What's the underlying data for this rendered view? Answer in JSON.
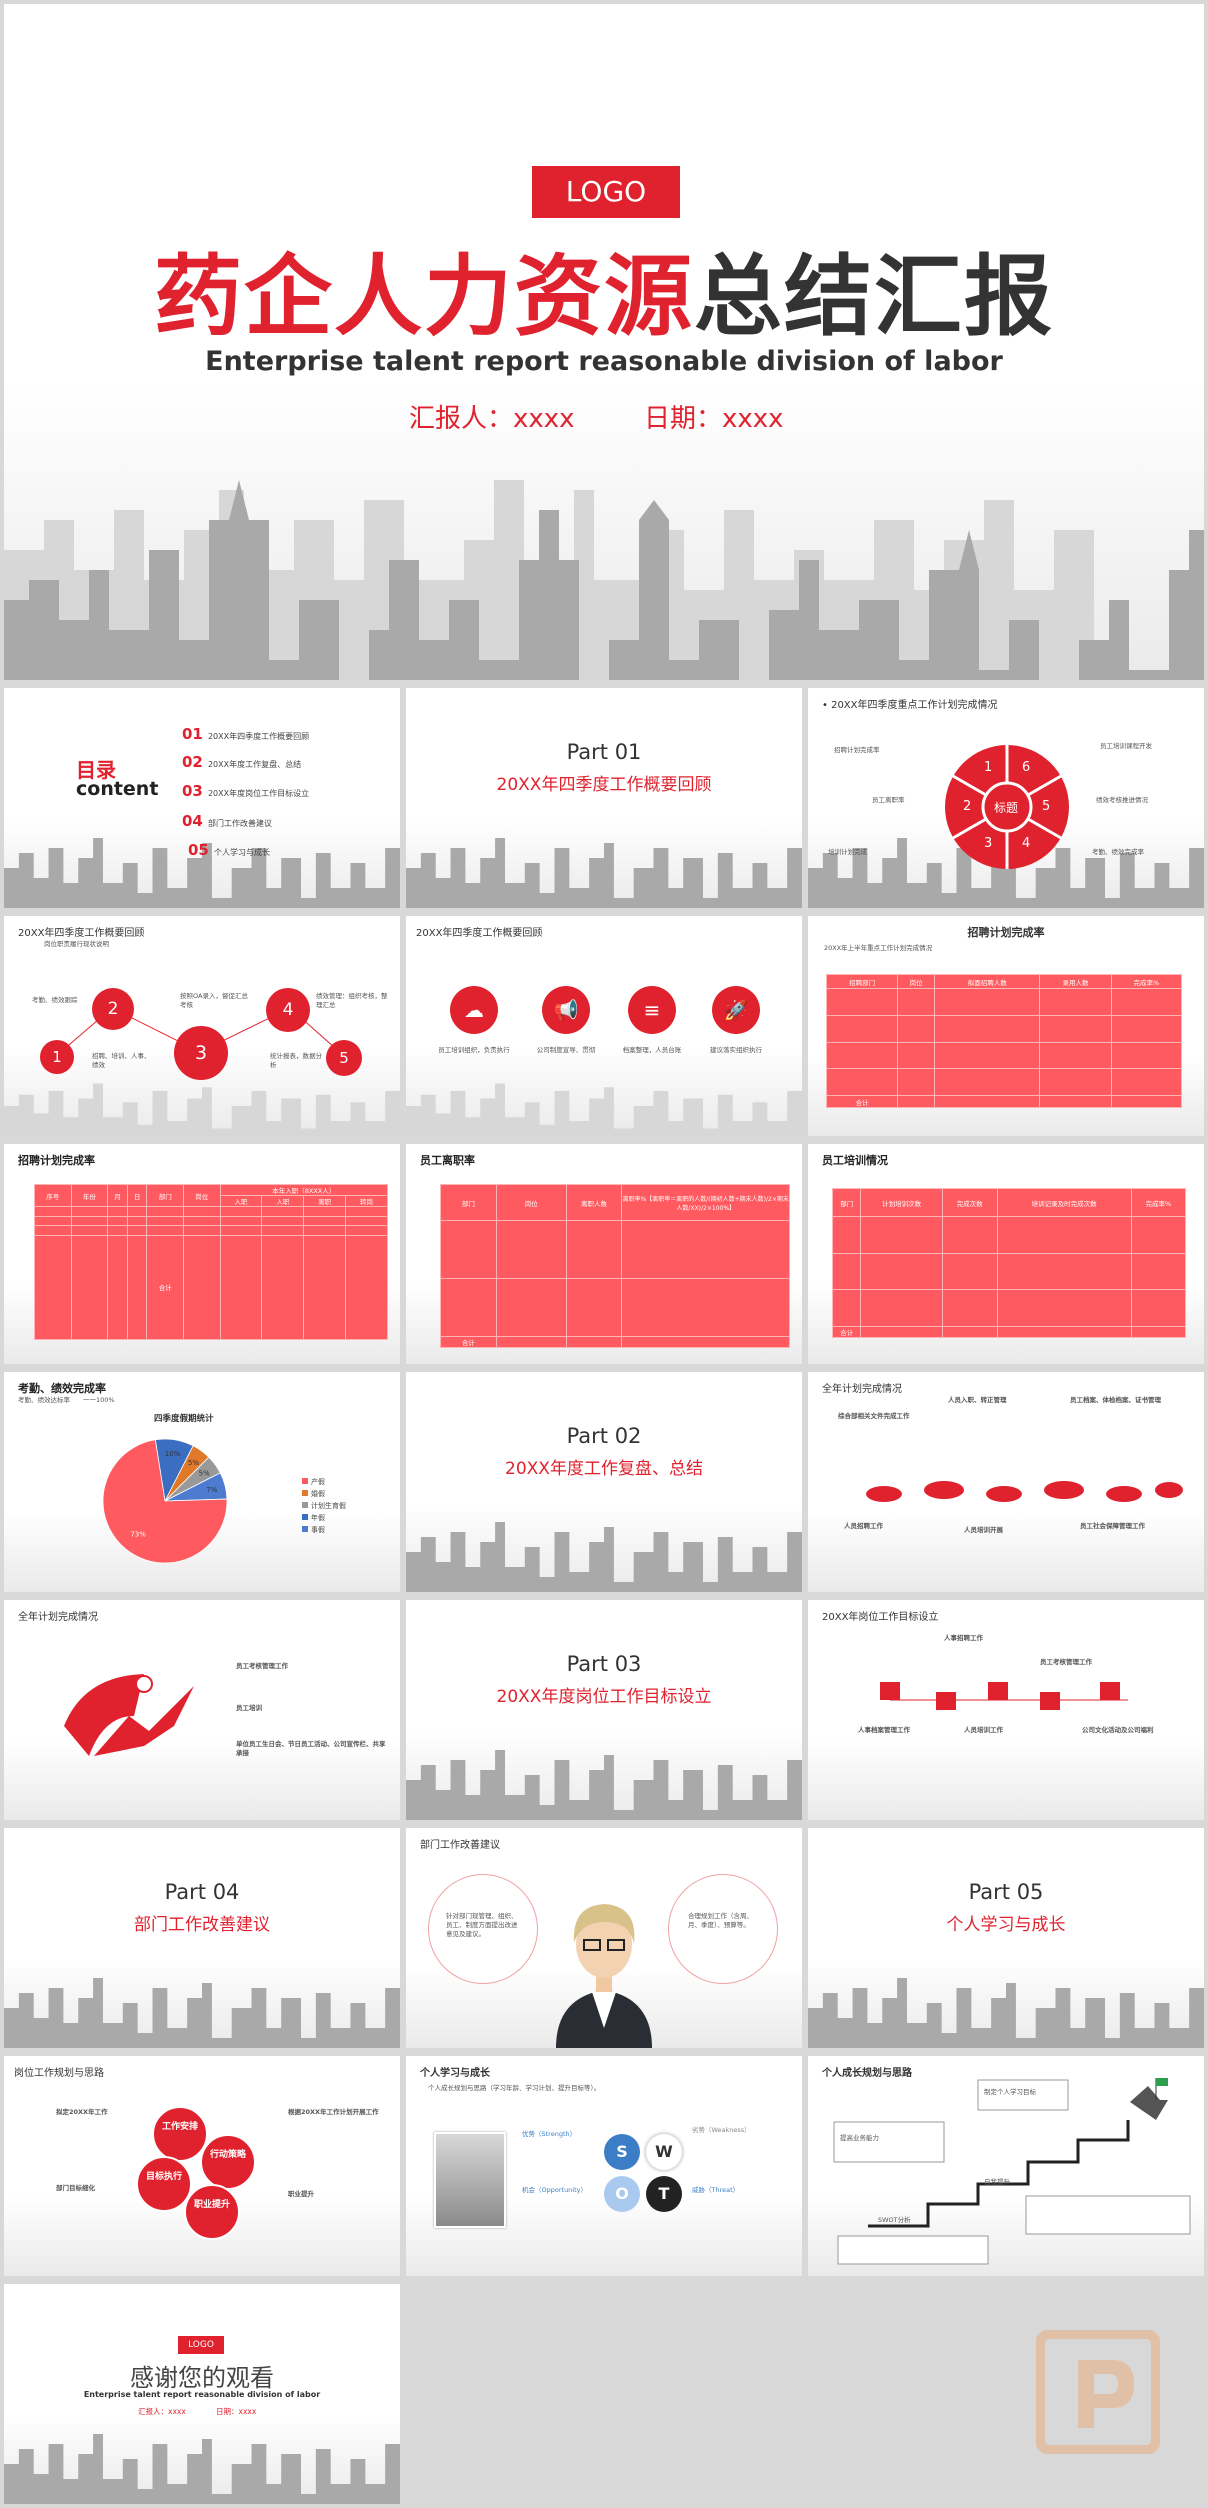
{
  "cover": {
    "logo": "LOGO",
    "title_red": "药企人力资源",
    "title_dark": "总结汇报",
    "subtitle": "Enterprise talent report reasonable division of labor",
    "reporter": "汇报人：xxxx",
    "date": "日期：xxxx"
  },
  "toc": {
    "label_cn": "目录",
    "label_en": "content",
    "items": [
      {
        "num": "01",
        "text": "20XX年四季度工作概要回顾"
      },
      {
        "num": "02",
        "text": "20XX年度工作复盘、总结"
      },
      {
        "num": "03",
        "text": "20XX年度岗位工作目标设立"
      },
      {
        "num": "04",
        "text": "部门工作改善建议"
      },
      {
        "num": "05",
        "text": "个人学习与成长"
      }
    ]
  },
  "part01": {
    "part": "Part 01",
    "title": "20XX年四季度工作概要回顾"
  },
  "part02": {
    "part": "Part 02",
    "title": "20XX年度工作复盘、总结"
  },
  "part03": {
    "part": "Part 03",
    "title": "20XX年度岗位工作目标设立"
  },
  "part04": {
    "part": "Part 04",
    "title": "部门工作改善建议"
  },
  "part05": {
    "part": "Part 05",
    "title": "个人学习与成长"
  },
  "flower": {
    "title": "• 20XX年四季度重点工作计划完成情况",
    "center": "标题",
    "petals": [
      "1",
      "2",
      "3",
      "4",
      "5",
      "6"
    ],
    "labels": [
      "招聘计划完成率",
      "员工离职率",
      "培训计划完成",
      "员工培训课程开发",
      "绩效考核推进情况",
      "考勤、绩效完成率"
    ]
  },
  "steps": {
    "title": "20XX年四季度工作概要回顾",
    "sub": "岗位职责履行现状说明",
    "nums": [
      "1",
      "2",
      "3",
      "4",
      "5"
    ],
    "notes": [
      "考勤、绩效跟踪",
      "招聘、培训、人事、绩效",
      "按照OA录入，督促汇总考核",
      "绩效管理：组织考核，整理汇总",
      "统计报表，数据分析"
    ]
  },
  "icons": {
    "title": "20XX年四季度工作概要回顾",
    "items": [
      "员工培训组织，负责执行",
      "公司制度宣导、贯彻",
      "档案整理，人员台账",
      "建议落实组织执行"
    ]
  },
  "recruit1": {
    "title": "招聘计划完成率",
    "sub": "20XX年上半年重点工作计划完成情况",
    "headers": [
      "招聘部门",
      "岗位",
      "拟面招聘人数",
      "录用人数",
      "完成率%"
    ],
    "footer": "合计"
  },
  "recruit2": {
    "title": "招聘计划完成率",
    "headers": [
      "序号",
      "年份",
      "月",
      "日",
      "部门",
      "岗位",
      "本年入职（8XXX人）",
      "入职",
      "入职",
      "离职",
      "转岗"
    ],
    "footer": "合计"
  },
  "turnover": {
    "title": "员工离职率",
    "headers": [
      "部门",
      "岗位",
      "离职人数",
      "离职率%【离职率＝离职的人数/(期初人数+期末人数)/2×期末人数/XX)/2×100%】"
    ],
    "footer": "合计"
  },
  "training": {
    "title": "员工培训情况",
    "headers": [
      "部门",
      "计划培训次数",
      "完成次数",
      "培训记录及时完成次数",
      "完成率%"
    ],
    "footer": "合计"
  },
  "pie": {
    "title": "考勤、绩效完成率",
    "sub": "考勤、绩效达标率　　一一100%",
    "chart_title": "四季度假期统计"
  },
  "chart_data": {
    "type": "pie",
    "title": "四季度假期统计",
    "categories": [
      "产假",
      "婚假",
      "计划生育假",
      "年假",
      "事假"
    ],
    "values": [
      73,
      5,
      5,
      10,
      7
    ],
    "colors": [
      "#ff5a5f",
      "#e07a2a",
      "#999999",
      "#3b6dc0",
      "#4d7bd0"
    ],
    "legend": "right"
  },
  "plan1": {
    "title": "全年计划完成情况",
    "blocks": [
      "综合部相关文件完成工作",
      "人员入职、转正管理",
      "员工档案、体检档案、证书管理",
      "人员招聘工作",
      "人员培训开展",
      "员工社会保障管理工作"
    ]
  },
  "plan2": {
    "title": "全年计划完成情况",
    "items": [
      "员工考核管理工作",
      "员工培训",
      "单位员工生日会、节日员工活动、公司宣传栏、共享承接"
    ]
  },
  "goals": {
    "title": "20XX年岗位工作目标设立",
    "items": [
      "人事招聘工作",
      "员工考核管理工作",
      "人事档案管理工作",
      "人员培训工作",
      "公司文化活动及公司福利"
    ]
  },
  "advice": {
    "title": "部门工作改善建议",
    "left": "针对部门现管理、组织、员工、制度方面提出改进意见及建议。",
    "right": "合理规划工作（含周、月、季度）、预算等。"
  },
  "plan3": {
    "title": "岗位工作规划与思路",
    "left": [
      "拟定20XX年工作",
      "部门目标细化"
    ],
    "right": [
      "根据20XX年工作计划开展工作",
      "职业提升"
    ],
    "circles": [
      "工作安排",
      "行动策略",
      "职业提升",
      "目标执行"
    ]
  },
  "swot": {
    "title": "个人学习与成长",
    "sub": "个人成长规划与思路（学习年龄、学习计划、提升目标等）。",
    "letters": [
      "S",
      "W",
      "O",
      "T"
    ],
    "labels": [
      "优势（Strength）",
      "劣势（Weakness）",
      "机会（Opportunity）",
      "威胁（Threat）"
    ]
  },
  "growth": {
    "title": "个人成长规划与思路",
    "notes": [
      "制定个人学习目标",
      "提高业务能力",
      "自我提升",
      "SWOT分析"
    ]
  },
  "thanks": {
    "logo": "LOGO",
    "title": "感谢您的观看",
    "subtitle": "Enterprise talent report reasonable division of labor",
    "reporter": "汇报人：xxxx",
    "date": "日期：xxxx"
  },
  "colors": {
    "accent": "#e0222e",
    "table": "#ff5a5f"
  }
}
